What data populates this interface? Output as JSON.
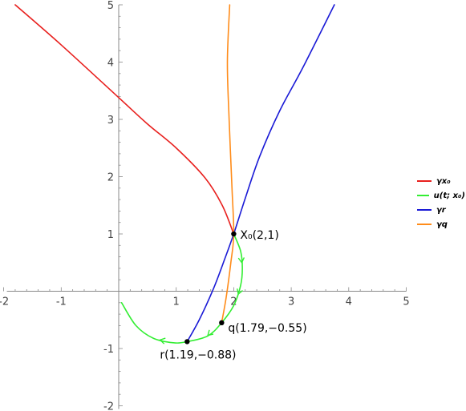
{
  "chart_data": {
    "type": "line",
    "xlim": [
      -2,
      5
    ],
    "ylim": [
      -2,
      5
    ],
    "x_ticks": [
      "-2",
      "-1",
      "1",
      "2",
      "3",
      "4",
      "5"
    ],
    "x_tick_values": [
      -2,
      -1,
      1,
      2,
      3,
      4,
      5
    ],
    "y_ticks": [
      "-2",
      "-1",
      "1",
      "2",
      "3",
      "4",
      "5"
    ],
    "y_tick_values": [
      -2,
      -1,
      1,
      2,
      3,
      4,
      5
    ],
    "grid": false,
    "legend_position": "right",
    "series": [
      {
        "name": "γx₀",
        "color": "#e8201e",
        "points": [
          [
            -1.8,
            5.0
          ],
          [
            -1.0,
            4.3
          ],
          [
            0.0,
            3.38
          ],
          [
            0.5,
            2.92
          ],
          [
            1.0,
            2.5
          ],
          [
            1.5,
            1.98
          ],
          [
            1.8,
            1.5
          ],
          [
            2.0,
            1.0
          ]
        ]
      },
      {
        "name": "u(t; x₀)",
        "color": "#33ee33",
        "points": [
          [
            2.0,
            1.0
          ],
          [
            2.12,
            0.7
          ],
          [
            2.15,
            0.4
          ],
          [
            2.12,
            0.1
          ],
          [
            2.0,
            -0.25
          ],
          [
            1.79,
            -0.55
          ],
          [
            1.55,
            -0.78
          ],
          [
            1.19,
            -0.88
          ],
          [
            0.95,
            -0.9
          ],
          [
            0.6,
            -0.82
          ],
          [
            0.3,
            -0.6
          ],
          [
            0.05,
            -0.2
          ]
        ],
        "arrows": [
          [
            2.14,
            0.5
          ],
          [
            2.08,
            -0.05
          ],
          [
            1.55,
            -0.77
          ],
          [
            0.72,
            -0.85
          ]
        ]
      },
      {
        "name": "γr",
        "color": "#1a1ad6",
        "points": [
          [
            1.19,
            -0.88
          ],
          [
            1.4,
            -0.5
          ],
          [
            1.65,
            0.05
          ],
          [
            1.85,
            0.58
          ],
          [
            2.0,
            1.0
          ],
          [
            2.2,
            1.62
          ],
          [
            2.45,
            2.35
          ],
          [
            2.8,
            3.15
          ],
          [
            3.2,
            3.9
          ],
          [
            3.75,
            5.0
          ]
        ]
      },
      {
        "name": "γq",
        "color": "#ff8c1a",
        "points": [
          [
            1.79,
            -0.55
          ],
          [
            1.87,
            -0.1
          ],
          [
            1.95,
            0.5
          ],
          [
            2.0,
            1.0
          ],
          [
            1.97,
            1.8
          ],
          [
            1.92,
            3.0
          ],
          [
            1.89,
            4.0
          ],
          [
            1.93,
            5.0
          ]
        ]
      }
    ],
    "points": [
      {
        "x": 2.0,
        "y": 1.0,
        "label": "X₀(2,1)"
      },
      {
        "x": 1.79,
        "y": -0.55,
        "label": "q(1.79,−0.55)"
      },
      {
        "x": 1.19,
        "y": -0.88,
        "label": "r(1.19,−0.88)"
      }
    ]
  },
  "legend": [
    {
      "label": "γx₀",
      "color": "#e8201e"
    },
    {
      "label": "u(t; x₀)",
      "color": "#33ee33"
    },
    {
      "label": "γr",
      "color": "#1a1ad6"
    },
    {
      "label": "γq",
      "color": "#ff8c1a"
    }
  ]
}
